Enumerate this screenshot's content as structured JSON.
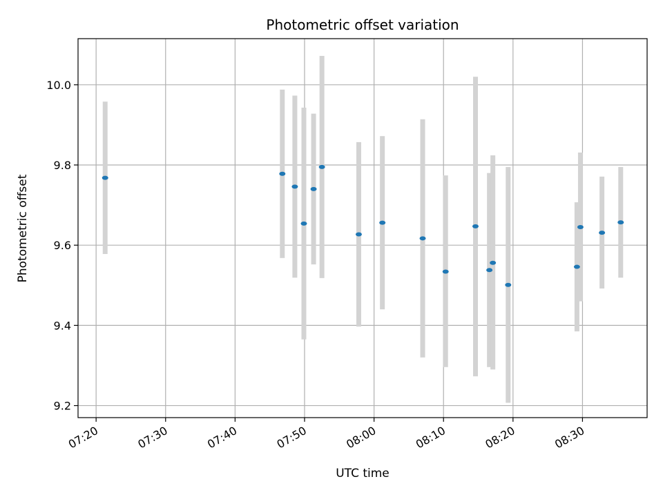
{
  "chart_data": {
    "type": "scatter",
    "title": "Photometric offset variation",
    "xlabel": "UTC time",
    "ylabel": "Photometric offset",
    "x_ticks": [
      "07:20",
      "07:30",
      "07:40",
      "07:50",
      "08:00",
      "08:10",
      "08:20",
      "08:30"
    ],
    "x_tick_minutes": [
      440,
      450,
      460,
      470,
      480,
      490,
      500,
      510
    ],
    "xlim_minutes": [
      437.4,
      519.3
    ],
    "ylim": [
      9.17,
      10.115
    ],
    "y_ticks": [
      9.2,
      9.4,
      9.6,
      9.8,
      10.0
    ],
    "y_tick_labels": [
      "9.2",
      "9.4",
      "9.6",
      "9.8",
      "10.0"
    ],
    "grid": true,
    "colors": {
      "point": "#1f77b4",
      "errorbar": "#d3d3d3",
      "grid": "#b0b0b0"
    },
    "points": [
      {
        "t": 441.3,
        "y": 9.768,
        "lo": 9.578,
        "hi": 9.958
      },
      {
        "t": 466.8,
        "y": 9.778,
        "lo": 9.568,
        "hi": 9.988
      },
      {
        "t": 468.6,
        "y": 9.746,
        "lo": 9.519,
        "hi": 9.973
      },
      {
        "t": 469.9,
        "y": 9.654,
        "lo": 9.365,
        "hi": 9.943
      },
      {
        "t": 471.3,
        "y": 9.74,
        "lo": 9.552,
        "hi": 9.928
      },
      {
        "t": 472.5,
        "y": 9.795,
        "lo": 9.518,
        "hi": 10.072
      },
      {
        "t": 477.8,
        "y": 9.627,
        "lo": 9.397,
        "hi": 9.857
      },
      {
        "t": 481.2,
        "y": 9.656,
        "lo": 9.44,
        "hi": 9.872
      },
      {
        "t": 487.0,
        "y": 9.617,
        "lo": 9.32,
        "hi": 9.914
      },
      {
        "t": 490.3,
        "y": 9.534,
        "lo": 9.296,
        "hi": 9.774
      },
      {
        "t": 494.6,
        "y": 9.647,
        "lo": 9.273,
        "hi": 10.02
      },
      {
        "t": 496.6,
        "y": 9.538,
        "lo": 9.296,
        "hi": 9.78
      },
      {
        "t": 497.1,
        "y": 9.556,
        "lo": 9.29,
        "hi": 9.824
      },
      {
        "t": 499.3,
        "y": 9.501,
        "lo": 9.207,
        "hi": 9.795
      },
      {
        "t": 509.2,
        "y": 9.546,
        "lo": 9.385,
        "hi": 9.707
      },
      {
        "t": 509.7,
        "y": 9.645,
        "lo": 9.46,
        "hi": 9.831
      },
      {
        "t": 512.8,
        "y": 9.631,
        "lo": 9.492,
        "hi": 9.771
      },
      {
        "t": 515.5,
        "y": 9.657,
        "lo": 9.519,
        "hi": 9.795
      }
    ]
  }
}
